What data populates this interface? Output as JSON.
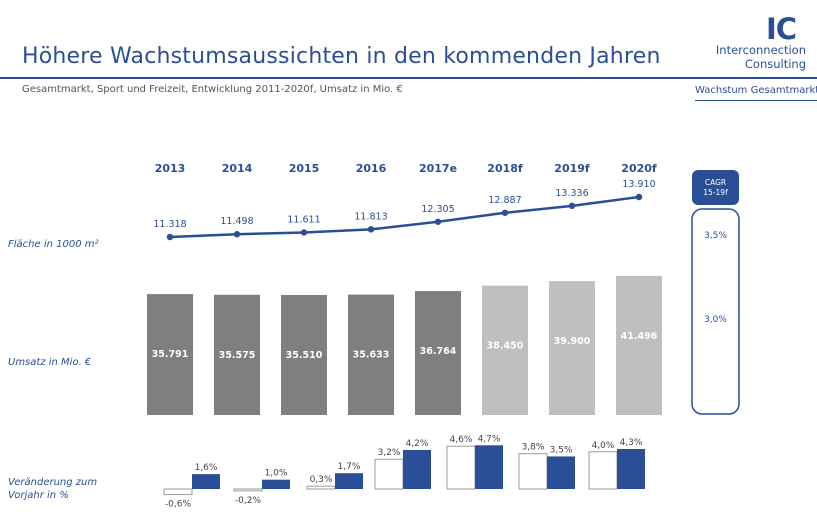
{
  "header": {
    "title": "Höhere Wachstumsaussichten in den kommenden Jahren",
    "subtitle": "Gesamtmarkt, Sport und Freizeit, Entwicklung 2011-2020f, Umsatz in Mio. €",
    "logo_mark": "IC",
    "logo_name_line1": "Interconnection",
    "logo_name_line2": "Consulting",
    "section_tag": "Wachstum Gesamtmarkt"
  },
  "colors": {
    "brand_blue": "#2b4f96",
    "bar_actual": "#7f7f7f",
    "bar_forecast": "#bfbfbf"
  },
  "chart_data": {
    "type": "bar",
    "categories": [
      "2013",
      "2014",
      "2015",
      "2016",
      "2017e",
      "2018f",
      "2019f",
      "2020f"
    ],
    "row_labels": {
      "area": "Fläche in 1000 m²",
      "revenue": "Umsatz in Mio. €",
      "change": "Veränderung zum Vorjahr in %"
    },
    "area": {
      "values": [
        11318,
        11498,
        11611,
        11813,
        12305,
        12887,
        13336,
        13910
      ],
      "labels": [
        "11.318",
        "11.498",
        "11.611",
        "11.813",
        "12.305",
        "12.887",
        "13.336",
        "13.910"
      ]
    },
    "revenue": {
      "values": [
        35791,
        35575,
        35510,
        35633,
        36764,
        38450,
        39900,
        41496
      ],
      "labels": [
        "35.791",
        "35.575",
        "35.510",
        "35.633",
        "36.764",
        "38.450",
        "39.900",
        "41.496"
      ],
      "forecast_from_index": 5
    },
    "change": {
      "series": [
        {
          "values": [
            -0.6,
            -0.2,
            0.3,
            3.2,
            4.6,
            3.8,
            4.0
          ],
          "labels": [
            "-0,6%",
            "-0,2%",
            "0,3%",
            "3,2%",
            "4,6%",
            "3,8%",
            "4,0%"
          ]
        },
        {
          "values": [
            1.6,
            1.0,
            1.7,
            4.2,
            4.7,
            3.5,
            4.3
          ],
          "labels": [
            "1,6%",
            "1,0%",
            "1,7%",
            "4,2%",
            "4,7%",
            "3,5%",
            "4,3%"
          ]
        }
      ]
    },
    "cagr": {
      "header_line1": "CAGR",
      "header_line2": "15-19f",
      "values": [
        "3,5%",
        "3,0%"
      ]
    }
  }
}
